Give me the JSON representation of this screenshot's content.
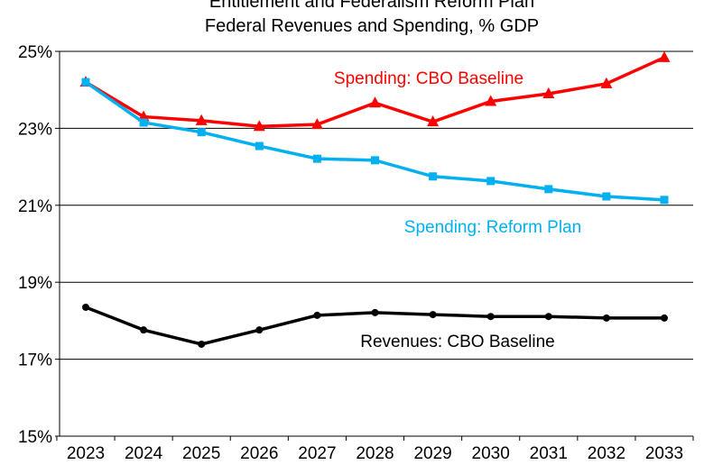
{
  "chart_data": {
    "type": "line",
    "title": [
      "Entitlement and Federalism Reform Plan",
      "Federal Revenues and Spending, % GDP"
    ],
    "xlabel": "",
    "ylabel": "",
    "x": [
      "2023",
      "2024",
      "2025",
      "2026",
      "2027",
      "2028",
      "2029",
      "2030",
      "2031",
      "2032",
      "2033"
    ],
    "ylim": [
      15,
      25
    ],
    "yticks": [
      "15%",
      "17%",
      "19%",
      "21%",
      "23%",
      "25%"
    ],
    "ytick_values": [
      15,
      17,
      19,
      21,
      23,
      25
    ],
    "grid": "horizontal",
    "series": [
      {
        "name": "Spending: CBO Baseline",
        "color": "#ff0000",
        "marker": "triangle",
        "values": [
          24.2,
          23.3,
          23.2,
          23.05,
          23.1,
          23.66,
          23.17,
          23.7,
          23.9,
          24.16,
          24.84
        ]
      },
      {
        "name": "Spending: Reform Plan",
        "color": "#00b0f0",
        "marker": "square",
        "values": [
          24.2,
          23.15,
          22.9,
          22.54,
          22.21,
          22.17,
          21.75,
          21.63,
          21.42,
          21.23,
          21.14
        ]
      },
      {
        "name": "Revenues: CBO Baseline",
        "color": "#000000",
        "marker": "circle",
        "values": [
          18.35,
          17.76,
          17.39,
          17.76,
          18.14,
          18.21,
          18.16,
          18.11,
          18.11,
          18.07,
          18.07
        ]
      }
    ]
  }
}
